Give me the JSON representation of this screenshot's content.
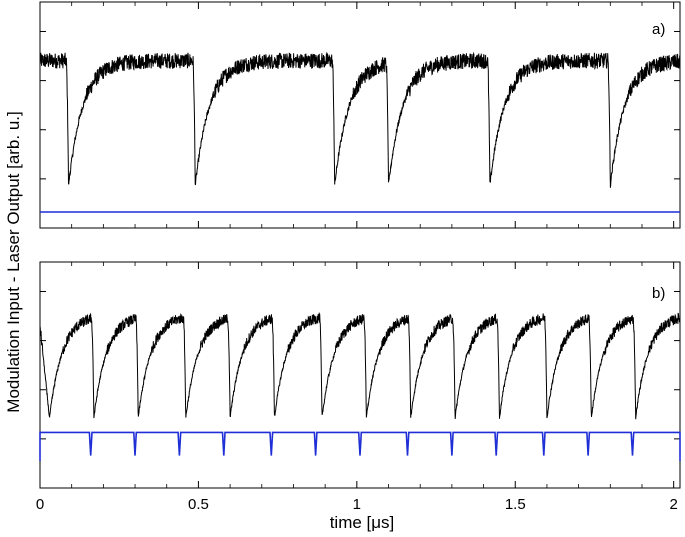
{
  "chart_data": {
    "type": "line",
    "xlabel": "time [μs]",
    "ylabel": "Modulation Input - Laser Output [arb. u.]",
    "xlim": [
      0,
      2.02
    ],
    "x_ticks": [
      "0",
      "0.5",
      "1",
      "1.5",
      "2"
    ],
    "x_tick_values": [
      0,
      0.5,
      1,
      1.5,
      2
    ],
    "grid": false,
    "colors": {
      "laser": "#000000",
      "modulation": "#1f2fd6"
    },
    "panels": [
      {
        "label": "a)",
        "ylim": [
          0,
          1
        ],
        "series": [
          {
            "role": "laser",
            "dip_times": [
              0.09,
              0.49,
              0.93,
              1.1,
              1.42,
              1.8
            ],
            "baseline_level": 0.86,
            "dip_level": 0.15
          },
          {
            "role": "modulation",
            "constant_level": 0.0
          }
        ]
      },
      {
        "label": "b)",
        "ylim": [
          0,
          1
        ],
        "series": [
          {
            "role": "laser",
            "dip_times": [
              0.03,
              0.17,
              0.31,
              0.46,
              0.6,
              0.74,
              0.89,
              1.03,
              1.17,
              1.31,
              1.45,
              1.6,
              1.74,
              1.88
            ],
            "baseline_level": 0.86,
            "dip_level": 0.28
          },
          {
            "role": "modulation",
            "high_level": 0.2,
            "low_level": 0.07,
            "pulse_times": [
              0.16,
              0.3,
              0.44,
              0.58,
              0.73,
              0.87,
              1.01,
              1.16,
              1.3,
              1.44,
              1.59,
              1.73,
              1.87
            ]
          }
        ]
      }
    ]
  }
}
